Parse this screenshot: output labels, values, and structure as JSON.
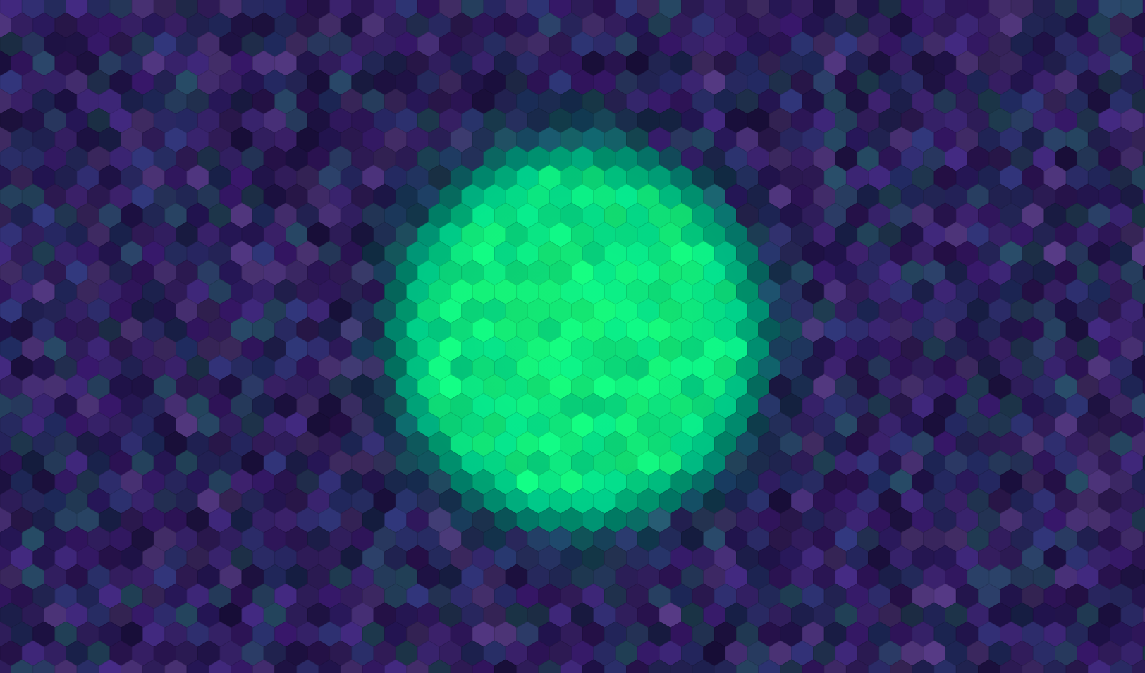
{
  "scene": {
    "description_kind": "abstract-mosaic",
    "pattern": "hexagon-tiles",
    "palette": {
      "background_base": "#2b1b57",
      "background_variants": [
        "#1f1248",
        "#3a2470",
        "#2a2f6a",
        "#341d5e",
        "#1c2452",
        "#47306f",
        "#23405a",
        "#2f145a"
      ],
      "glow_center": "#19ff7a",
      "glow_mid": "#00d38a",
      "glow_edge": "#00806a"
    },
    "glow": {
      "shape": "ellipse",
      "visible": true
    }
  }
}
